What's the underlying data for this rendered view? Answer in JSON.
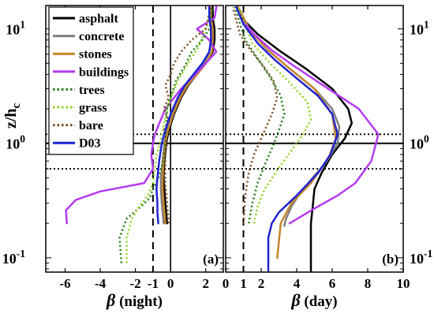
{
  "chart_data": [
    {
      "panel_label": "(a)",
      "type": "line",
      "xlabel_symbol": "β",
      "xlabel_text": "(night)",
      "ylabel_main": "z/h",
      "ylabel_sub": "c",
      "xlim": [
        -7.1,
        3.0
      ],
      "ylim": [
        0.075,
        16
      ],
      "yscale": "log",
      "xticks": [
        -6,
        -4,
        -2,
        -1,
        0,
        2
      ],
      "xtick_labels": [
        "-6",
        "-4",
        "-2",
        "-1",
        "0",
        "2"
      ],
      "yticks": [
        0.1,
        1,
        10
      ],
      "ytick_labels": [
        "10^-1",
        "10^0",
        "10^1"
      ],
      "reference_lines": {
        "vertical_dashed": -1,
        "vertical_solid": 0,
        "horizontal_solid": 1,
        "horizontal_dotted": [
          0.6,
          1.2
        ]
      },
      "legend": {
        "placement": "top-left"
      },
      "series": [
        {
          "name": "asphalt",
          "color": "#000000",
          "dash": "solid",
          "x": [
            -0.2,
            -0.25,
            -0.3,
            -0.35,
            -0.4,
            -0.35,
            -0.25,
            -0.1,
            0.2,
            0.6,
            1.0,
            1.5,
            2.0,
            2.4,
            2.5,
            2.5,
            2.4,
            2.4
          ],
          "y": [
            0.2,
            0.25,
            0.3,
            0.4,
            0.5,
            0.7,
            1.0,
            1.3,
            1.8,
            2.5,
            3.2,
            4.0,
            5.0,
            6.3,
            8.0,
            10.0,
            12.5,
            15.5
          ]
        },
        {
          "name": "concrete",
          "color": "#7f7f7f",
          "dash": "solid",
          "x": [
            -0.4,
            -0.45,
            -0.5,
            -0.55,
            -0.55,
            -0.45,
            -0.35,
            -0.2,
            0.1,
            0.5,
            0.9,
            1.4,
            1.9,
            2.2,
            2.3,
            2.3,
            2.2,
            2.2
          ],
          "y": [
            0.2,
            0.25,
            0.3,
            0.4,
            0.5,
            0.7,
            1.0,
            1.3,
            1.8,
            2.5,
            3.2,
            4.0,
            5.0,
            6.3,
            8.0,
            10.0,
            12.5,
            15.5
          ]
        },
        {
          "name": "stones",
          "color": "#c6862f",
          "dash": "solid",
          "x": [
            -0.3,
            -0.35,
            -0.4,
            -0.45,
            -0.45,
            -0.4,
            -0.3,
            -0.15,
            0.15,
            0.55,
            0.95,
            1.5,
            2.0,
            2.35,
            2.4,
            2.4,
            2.3,
            2.3
          ],
          "y": [
            0.2,
            0.25,
            0.3,
            0.4,
            0.5,
            0.7,
            1.0,
            1.3,
            1.8,
            2.5,
            3.2,
            4.0,
            5.0,
            6.3,
            8.0,
            10.0,
            12.5,
            15.5
          ]
        },
        {
          "name": "buildings",
          "color": "#b33bf0",
          "dash": "solid",
          "x": [
            -5.9,
            -5.95,
            -5.4,
            -4.0,
            -1.5,
            -1.0,
            -1.1,
            -1.0,
            -0.9,
            -0.3,
            0.6,
            1.4,
            2.0,
            2.6,
            2.2,
            1.5,
            2.5,
            2.6
          ],
          "y": [
            0.2,
            0.26,
            0.32,
            0.38,
            0.45,
            0.6,
            0.8,
            1.0,
            1.2,
            2.0,
            3.0,
            4.0,
            5.0,
            6.3,
            8.0,
            10.0,
            12.5,
            15.5
          ]
        },
        {
          "name": "trees",
          "color": "#1e7a14",
          "dash": "dotted",
          "x": [
            -2.8,
            -2.9,
            -2.5,
            -1.7,
            -1.2,
            -1.0,
            -0.7,
            -0.4,
            -0.3,
            -0.2,
            0.3,
            0.9,
            1.2,
            1.8,
            2.2,
            2.4
          ],
          "y": [
            0.09,
            0.15,
            0.22,
            0.28,
            0.33,
            0.4,
            0.5,
            0.7,
            1.0,
            2.0,
            3.5,
            5.0,
            6.3,
            8.0,
            10.0,
            15.5
          ]
        },
        {
          "name": "grass",
          "color": "#8ed11e",
          "dash": "dotted",
          "x": [
            -2.5,
            -2.5,
            -2.2,
            -1.8,
            -1.3,
            -1.0,
            -0.9,
            -0.8,
            -0.6,
            -0.2,
            0.4,
            1.0,
            1.6,
            2.0,
            2.3
          ],
          "y": [
            0.09,
            0.15,
            0.22,
            0.28,
            0.35,
            0.45,
            0.6,
            0.8,
            1.0,
            2.0,
            3.5,
            5.0,
            7.0,
            10.0,
            15.5
          ]
        },
        {
          "name": "bare",
          "color": "#7a4a1c",
          "dash": "dotted",
          "x": [
            -0.1,
            -0.2,
            -0.3,
            -0.3,
            -0.3,
            -0.2,
            -0.4,
            -0.1,
            -0.4,
            -0.1,
            -0.3,
            0.0,
            0.2,
            0.6,
            1.2,
            2.0,
            2.3
          ],
          "y": [
            0.2,
            0.3,
            0.45,
            0.6,
            0.8,
            1.0,
            1.3,
            1.6,
            2.0,
            2.5,
            3.2,
            4.0,
            5.0,
            6.3,
            8.0,
            10.0,
            15.5
          ]
        },
        {
          "name": "D03",
          "color": "#1f24d1",
          "dash": "solid",
          "x": [
            -0.7,
            -0.75,
            -0.75,
            -0.8,
            -0.75,
            -0.65,
            -0.5,
            -0.3,
            0.0,
            0.4,
            0.8,
            1.3,
            1.8,
            2.2,
            2.3,
            2.3,
            2.2,
            2.2
          ],
          "y": [
            0.2,
            0.25,
            0.3,
            0.4,
            0.5,
            0.7,
            1.0,
            1.3,
            1.8,
            2.5,
            3.2,
            4.0,
            5.0,
            6.3,
            8.0,
            10.0,
            12.5,
            15.5
          ]
        }
      ]
    },
    {
      "panel_label": "(b)",
      "type": "line",
      "xlabel_symbol": "β",
      "xlabel_text": "(day)",
      "xlim": [
        0,
        10
      ],
      "ylim": [
        0.075,
        16
      ],
      "yscale": "log",
      "xticks": [
        0,
        1,
        2,
        4,
        6,
        8,
        10
      ],
      "xtick_labels": [
        "0",
        "1",
        "2",
        "4",
        "6",
        "8",
        "10"
      ],
      "yticks": [
        0.1,
        1,
        10
      ],
      "ytick_labels": [
        "10^-1",
        "10^0",
        "10^1"
      ],
      "reference_lines": {
        "vertical_dashed": 1,
        "horizontal_solid": 1,
        "horizontal_dotted": [
          0.6,
          1.2
        ]
      },
      "series": [
        {
          "name": "asphalt",
          "color": "#000000",
          "dash": "solid",
          "x": [
            4.8,
            4.8,
            4.9,
            5.0,
            5.4,
            6.0,
            6.7,
            7.1,
            6.9,
            6.0,
            4.5,
            3.0,
            1.8,
            1.0,
            0.6
          ],
          "y": [
            0.075,
            0.2,
            0.28,
            0.4,
            0.55,
            0.8,
            1.1,
            1.5,
            2.0,
            3.0,
            4.5,
            6.5,
            9.0,
            12.0,
            15.5
          ]
        },
        {
          "name": "concrete",
          "color": "#7f7f7f",
          "dash": "solid",
          "x": [
            3.3,
            3.4,
            3.7,
            4.2,
            4.9,
            5.7,
            6.3,
            6.4,
            6.0,
            5.0,
            3.6,
            2.4,
            1.4,
            0.7
          ],
          "y": [
            0.19,
            0.22,
            0.28,
            0.37,
            0.5,
            0.7,
            1.0,
            1.4,
            2.0,
            3.0,
            4.5,
            6.5,
            9.5,
            15.5
          ]
        },
        {
          "name": "stones",
          "color": "#c6862f",
          "dash": "solid",
          "x": [
            2.9,
            3.0,
            3.1,
            3.7,
            4.8,
            5.8,
            6.2,
            6.0,
            5.0,
            3.6,
            2.4,
            1.4,
            0.7
          ],
          "y": [
            0.1,
            0.14,
            0.2,
            0.3,
            0.45,
            0.75,
            1.1,
            1.8,
            3.0,
            4.5,
            6.5,
            9.5,
            15.5
          ]
        },
        {
          "name": "buildings",
          "color": "#b33bf0",
          "dash": "solid",
          "x": [
            3.6,
            5.0,
            6.3,
            7.3,
            8.2,
            8.6,
            7.5,
            5.5,
            3.8,
            2.6,
            1.6,
            0.9,
            0.6
          ],
          "y": [
            0.2,
            0.27,
            0.35,
            0.45,
            0.7,
            1.2,
            2.0,
            3.2,
            4.8,
            6.5,
            9.0,
            12.0,
            15.5
          ]
        },
        {
          "name": "trees",
          "color": "#1e7a14",
          "dash": "dotted",
          "x": [
            1.3,
            1.5,
            1.8,
            2.2,
            2.6,
            3.0,
            3.3,
            3.1,
            2.5,
            1.8,
            1.1,
            0.5
          ],
          "y": [
            0.2,
            0.3,
            0.45,
            0.65,
            0.9,
            1.3,
            1.8,
            2.6,
            3.8,
            5.5,
            8.0,
            15.5
          ]
        },
        {
          "name": "grass",
          "color": "#8ed11e",
          "dash": "dotted",
          "x": [
            1.6,
            1.8,
            2.2,
            2.8,
            3.4,
            4.2,
            4.8,
            4.6,
            3.6,
            2.5,
            1.5,
            0.7
          ],
          "y": [
            0.2,
            0.28,
            0.4,
            0.55,
            0.75,
            1.1,
            1.6,
            2.3,
            3.4,
            5.0,
            7.5,
            15.5
          ]
        },
        {
          "name": "bare",
          "color": "#7a4a1c",
          "dash": "dotted",
          "x": [
            1.0,
            1.1,
            1.3,
            1.6,
            2.1,
            2.6,
            2.9,
            2.7,
            2.1,
            1.4,
            0.8,
            0.4
          ],
          "y": [
            0.2,
            0.35,
            0.55,
            0.8,
            1.2,
            1.8,
            2.5,
            3.5,
            4.8,
            6.5,
            9.0,
            15.5
          ]
        },
        {
          "name": "D03",
          "color": "#1f24d1",
          "dash": "solid",
          "x": [
            2.4,
            2.4,
            2.6,
            3.0,
            4.0,
            5.2,
            5.9,
            6.3,
            6.0,
            5.2,
            4.0,
            2.8,
            1.8,
            1.0,
            0.6
          ],
          "y": [
            0.075,
            0.15,
            0.2,
            0.25,
            0.35,
            0.55,
            0.8,
            1.2,
            1.8,
            2.6,
            3.7,
            5.3,
            7.5,
            11.0,
            15.5
          ]
        }
      ]
    }
  ]
}
